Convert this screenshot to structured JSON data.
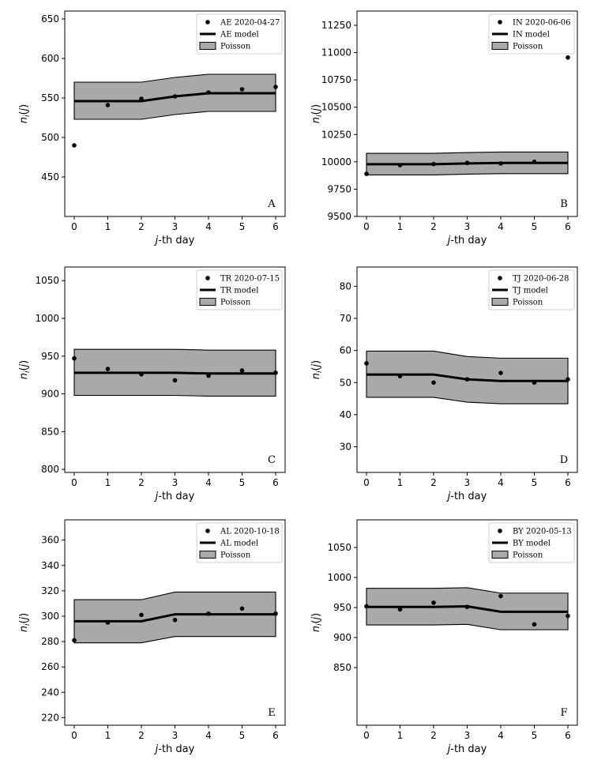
{
  "chart_data": [
    {
      "type": "line",
      "panel_label": "A",
      "xlabel_parts": [
        "j",
        "-th day"
      ],
      "ylabel_parts": [
        "n",
        "i",
        "(",
        "j",
        ")"
      ],
      "x": [
        0,
        1,
        2,
        3,
        4,
        5,
        6
      ],
      "ylim": [
        400,
        660
      ],
      "yticks": [
        450,
        500,
        550,
        600,
        650
      ],
      "series": [
        {
          "name": "AE 2020-04-27",
          "kind": "points",
          "values": [
            490,
            541,
            549,
            552,
            557,
            561,
            564
          ]
        },
        {
          "name": "AE model",
          "kind": "line",
          "values": [
            546,
            546,
            546,
            552,
            556,
            556,
            556
          ]
        },
        {
          "name": "Poisson",
          "kind": "band",
          "lower": [
            523,
            523,
            523,
            529,
            533,
            533,
            533
          ],
          "upper": [
            570,
            570,
            570,
            576,
            580,
            580,
            580
          ]
        }
      ],
      "colors": {
        "band": "#a9a9a9",
        "line": "#000000"
      }
    },
    {
      "type": "line",
      "panel_label": "B",
      "xlabel_parts": [
        "j",
        "-th day"
      ],
      "ylabel_parts": [
        "n",
        "i",
        "(",
        "j",
        ")"
      ],
      "x": [
        0,
        1,
        2,
        3,
        4,
        5,
        6
      ],
      "ylim": [
        9500,
        11380
      ],
      "yticks": [
        9500,
        9750,
        10000,
        10250,
        10500,
        10750,
        11000,
        11250
      ],
      "series": [
        {
          "name": "IN 2020-06-06",
          "kind": "points",
          "values": [
            9890,
            9970,
            9980,
            9990,
            9985,
            10000,
            10955
          ]
        },
        {
          "name": "IN model",
          "kind": "line",
          "values": [
            9978,
            9978,
            9978,
            9985,
            9990,
            9990,
            9990
          ]
        },
        {
          "name": "Poisson",
          "kind": "band",
          "lower": [
            9880,
            9880,
            9880,
            9887,
            9892,
            9892,
            9892
          ],
          "upper": [
            10078,
            10078,
            10078,
            10085,
            10090,
            10090,
            10090
          ]
        }
      ],
      "colors": {
        "band": "#a9a9a9",
        "line": "#000000"
      }
    },
    {
      "type": "line",
      "panel_label": "C",
      "xlabel_parts": [
        "j",
        "-th day"
      ],
      "ylabel_parts": [
        "n",
        "i",
        "(",
        "j",
        ")"
      ],
      "x": [
        0,
        1,
        2,
        3,
        4,
        5,
        6
      ],
      "ylim": [
        796,
        1068
      ],
      "yticks": [
        800,
        850,
        900,
        950,
        1000,
        1050
      ],
      "series": [
        {
          "name": "TR 2020-07-15",
          "kind": "points",
          "values": [
            947,
            933,
            926,
            918,
            924,
            931,
            928
          ]
        },
        {
          "name": "TR model",
          "kind": "line",
          "values": [
            928,
            928,
            928,
            928,
            927,
            927,
            927
          ]
        },
        {
          "name": "Poisson",
          "kind": "band",
          "lower": [
            898,
            898,
            898,
            898,
            897,
            897,
            897
          ],
          "upper": [
            959,
            959,
            959,
            959,
            958,
            958,
            958
          ]
        }
      ],
      "colors": {
        "band": "#a9a9a9",
        "line": "#000000"
      }
    },
    {
      "type": "line",
      "panel_label": "D",
      "xlabel_parts": [
        "j",
        "-th day"
      ],
      "ylabel_parts": [
        "n",
        "i",
        "(",
        "j",
        ")"
      ],
      "x": [
        0,
        1,
        2,
        3,
        4,
        5,
        6
      ],
      "ylim": [
        22,
        86
      ],
      "yticks": [
        30,
        40,
        50,
        60,
        70,
        80
      ],
      "series": [
        {
          "name": "TJ 2020-06-28",
          "kind": "points",
          "values": [
            56,
            52,
            50,
            51,
            53,
            50,
            51
          ]
        },
        {
          "name": "TJ model",
          "kind": "line",
          "values": [
            52.5,
            52.5,
            52.5,
            51,
            50.5,
            50.5,
            50.5
          ]
        },
        {
          "name": "Poisson",
          "kind": "band",
          "lower": [
            45.4,
            45.4,
            45.4,
            43.9,
            43.4,
            43.4,
            43.4
          ],
          "upper": [
            59.8,
            59.8,
            59.8,
            58.1,
            57.6,
            57.6,
            57.6
          ]
        }
      ],
      "colors": {
        "band": "#a9a9a9",
        "line": "#000000"
      }
    },
    {
      "type": "line",
      "panel_label": "E",
      "xlabel_parts": [
        "j",
        "-th day"
      ],
      "ylabel_parts": [
        "n",
        "i",
        "(",
        "j",
        ")"
      ],
      "x": [
        0,
        1,
        2,
        3,
        4,
        5,
        6
      ],
      "ylim": [
        214,
        376
      ],
      "yticks": [
        220,
        240,
        260,
        280,
        300,
        320,
        340,
        360
      ],
      "series": [
        {
          "name": "AL 2020-10-18",
          "kind": "points",
          "values": [
            281,
            295,
            301,
            297,
            302,
            306,
            302
          ]
        },
        {
          "name": "AL model",
          "kind": "line",
          "values": [
            296,
            296,
            296,
            301.5,
            301.5,
            301.5,
            301.5
          ]
        },
        {
          "name": "Poisson",
          "kind": "band",
          "lower": [
            279,
            279,
            279,
            284,
            284,
            284,
            284
          ],
          "upper": [
            313,
            313,
            313,
            319,
            319,
            319,
            319
          ]
        }
      ],
      "colors": {
        "band": "#a9a9a9",
        "line": "#000000"
      }
    },
    {
      "type": "line",
      "panel_label": "F",
      "xlabel_parts": [
        "j",
        "-th day"
      ],
      "ylabel_parts": [
        "n",
        "i",
        "(",
        "j",
        ")"
      ],
      "x": [
        0,
        1,
        2,
        3,
        4,
        5,
        6
      ],
      "ylim": [
        754,
        1096
      ],
      "yticks": [
        850,
        900,
        950,
        1000,
        1050
      ],
      "series": [
        {
          "name": "BY 2020-05-13",
          "kind": "points",
          "values": [
            952,
            947,
            958,
            951,
            969,
            922,
            936
          ]
        },
        {
          "name": "BY model",
          "kind": "line",
          "values": [
            951,
            951,
            951,
            952,
            943,
            943,
            943
          ]
        },
        {
          "name": "Poisson",
          "kind": "band",
          "lower": [
            921,
            921,
            921,
            922,
            913,
            913,
            913
          ],
          "upper": [
            982,
            982,
            982,
            983,
            974,
            974,
            974
          ]
        }
      ],
      "colors": {
        "band": "#a9a9a9",
        "line": "#000000"
      }
    }
  ]
}
